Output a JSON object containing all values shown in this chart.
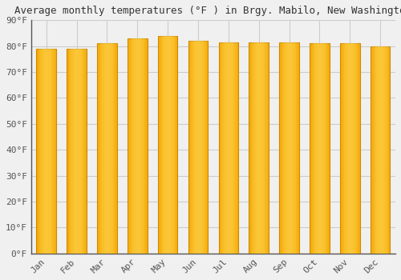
{
  "title": "Average monthly temperatures (°F ) in Brgy. Mabilo, New Washington",
  "months": [
    "Jan",
    "Feb",
    "Mar",
    "Apr",
    "May",
    "Jun",
    "Jul",
    "Aug",
    "Sep",
    "Oct",
    "Nov",
    "Dec"
  ],
  "values": [
    79,
    79,
    81,
    83,
    84,
    82,
    81.5,
    81.5,
    81.5,
    81,
    81,
    80
  ],
  "bar_color_dark": "#F5A800",
  "bar_color_light": "#FFD966",
  "bar_edge_color": "#CC8800",
  "background_color": "#f0f0f0",
  "ylim": [
    0,
    90
  ],
  "yticks": [
    0,
    10,
    20,
    30,
    40,
    50,
    60,
    70,
    80,
    90
  ],
  "ytick_labels": [
    "0°F",
    "10°F",
    "20°F",
    "30°F",
    "40°F",
    "50°F",
    "60°F",
    "70°F",
    "80°F",
    "90°F"
  ],
  "grid_color": "#cccccc",
  "title_fontsize": 9,
  "tick_fontsize": 8,
  "font_family": "monospace",
  "bar_width": 0.65,
  "xlabel_rotation": 45
}
